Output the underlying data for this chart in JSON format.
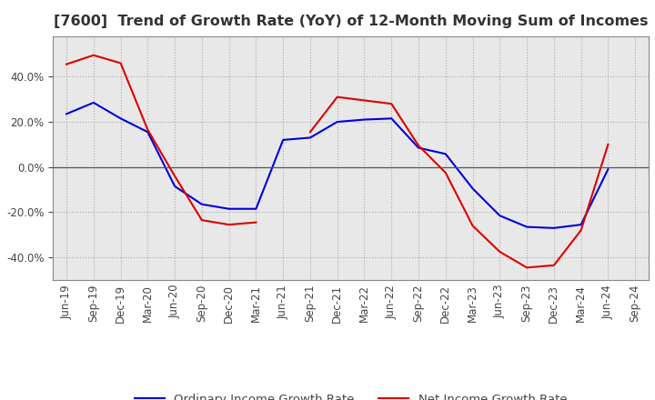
{
  "title": "[7600]  Trend of Growth Rate (YoY) of 12-Month Moving Sum of Incomes",
  "ylim": [
    -0.5,
    0.58
  ],
  "yticks": [
    -0.4,
    -0.2,
    0.0,
    0.2,
    0.4
  ],
  "background_color": "#ffffff",
  "plot_bg_color": "#e8e8e8",
  "grid_color": "#aaaaaa",
  "x_labels": [
    "Jun-19",
    "Sep-19",
    "Dec-19",
    "Mar-20",
    "Jun-20",
    "Sep-20",
    "Dec-20",
    "Mar-21",
    "Jun-21",
    "Sep-21",
    "Dec-21",
    "Mar-22",
    "Jun-22",
    "Sep-22",
    "Dec-22",
    "Mar-23",
    "Jun-23",
    "Sep-23",
    "Dec-23",
    "Mar-24",
    "Jun-24",
    "Sep-24"
  ],
  "ordinary_income": [
    0.235,
    0.285,
    0.215,
    0.155,
    -0.085,
    -0.165,
    -0.185,
    -0.185,
    0.12,
    0.13,
    0.2,
    0.21,
    0.215,
    0.085,
    0.058,
    -0.095,
    -0.215,
    -0.265,
    -0.27,
    -0.255,
    -0.01,
    null
  ],
  "net_income": [
    0.455,
    0.495,
    0.46,
    0.165,
    -0.04,
    -0.235,
    -0.255,
    -0.245,
    null,
    0.155,
    0.31,
    0.295,
    0.28,
    0.095,
    -0.025,
    -0.26,
    -0.375,
    -0.445,
    -0.435,
    -0.28,
    0.1,
    null
  ],
  "ordinary_color": "#0000dd",
  "net_color": "#dd0000",
  "title_fontsize": 11.5,
  "tick_fontsize": 8.5,
  "legend_fontsize": 9.5
}
